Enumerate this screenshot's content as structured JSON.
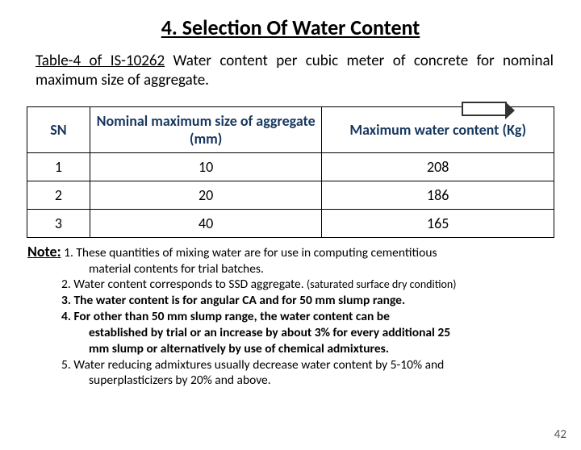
{
  "title": "4. Selection Of Water Content",
  "intro_prefix": "Table-4 of IS-10262",
  "intro_rest": " Water content per cubic meter of concrete for nominal maximum size of aggregate.",
  "table": {
    "header_sn": "SN",
    "header_col_a": "Nominal maximum size of aggregate (mm)",
    "header_col_b": "Maximum water content (Kg)",
    "rows": [
      {
        "sn": "1",
        "a": "10",
        "b": "208"
      },
      {
        "sn": "2",
        "a": "20",
        "b": "186"
      },
      {
        "sn": "3",
        "a": "40",
        "b": "165"
      }
    ],
    "col_widths": {
      "sn": 78,
      "a": 288,
      "b": 288
    },
    "header_color": "#17375e",
    "border_color": "#000000"
  },
  "notes": {
    "label": "Note:",
    "n1a": "1. These quantities of mixing water are for use in computing cementitious",
    "n1b": "material contents for trial batches.",
    "n2": "2. Water content corresponds to SSD aggregate.",
    "n2_small": " (saturated surface dry condition)",
    "n3": "3. The water content is for angular CA and for 50 mm slump range.",
    "n4a": "4. For other than 50 mm slump range, the water content can be",
    "n4b": "established by trial or an increase by about 3% for every additional  25",
    "n4c": "mm slump or alternatively by use of chemical admixtures.",
    "n5a": "5. Water reducing admixtures usually decrease water content by 5-10% and",
    "n5b": "superplasticizers by 20% and above."
  },
  "slide_number": "42",
  "colors": {
    "heading_navy": "#17375e",
    "slide_num": "#595959"
  }
}
